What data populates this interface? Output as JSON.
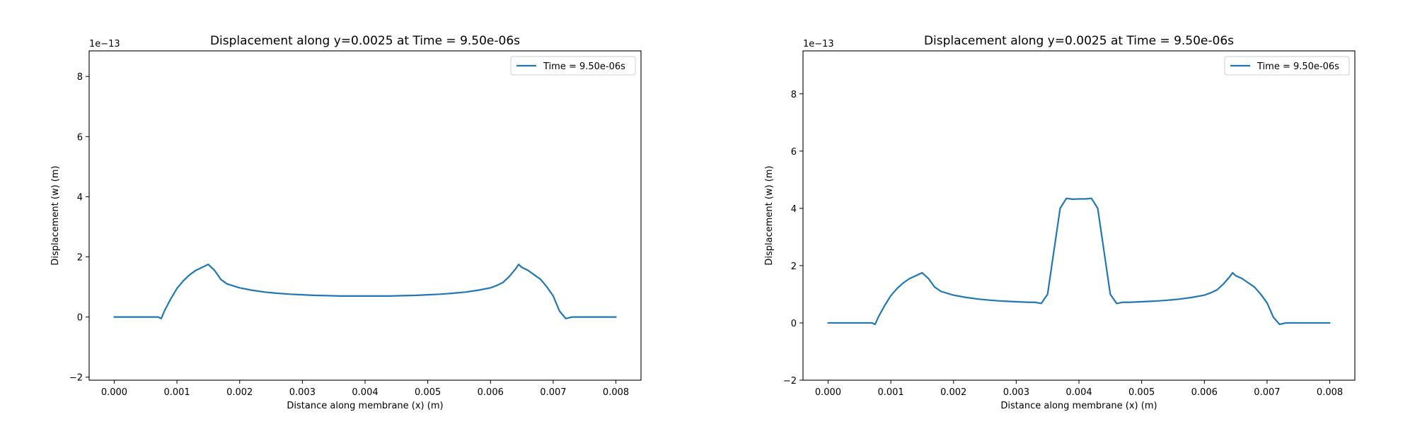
{
  "chart_data": [
    {
      "type": "line",
      "title": "Displacement along y=0.0025 at Time = 9.50e-06s",
      "xlabel": "Distance along membrane (x) (m)",
      "ylabel": "Displacement (w) (m)",
      "y_offset_label": "1e−13",
      "xlim": [
        -0.0004,
        0.0084
      ],
      "ylim": [
        -2.1,
        8.85
      ],
      "xticks": [
        0.0,
        0.001,
        0.002,
        0.003,
        0.004,
        0.005,
        0.006,
        0.007,
        0.008
      ],
      "xtick_labels": [
        "0.000",
        "0.001",
        "0.002",
        "0.003",
        "0.004",
        "0.005",
        "0.006",
        "0.007",
        "0.008"
      ],
      "yticks": [
        -2,
        0,
        2,
        4,
        6,
        8
      ],
      "ytick_labels": [
        "−2",
        "0",
        "2",
        "4",
        "6",
        "8"
      ],
      "legend_position": "top-right",
      "series": [
        {
          "name": "Time = 9.50e-06s",
          "color": "#1f77b4",
          "x": [
            0.0,
            0.0001,
            0.0002,
            0.0003,
            0.0004,
            0.0005,
            0.0006,
            0.0007,
            0.00075,
            0.0008,
            0.0009,
            0.001,
            0.0011,
            0.0012,
            0.0013,
            0.0014,
            0.0015,
            0.00155,
            0.0016,
            0.0017,
            0.0018,
            0.002,
            0.0022,
            0.0024,
            0.0026,
            0.0028,
            0.003,
            0.0032,
            0.0034,
            0.0036,
            0.0038,
            0.004,
            0.0042,
            0.0044,
            0.0046,
            0.0048,
            0.005,
            0.0052,
            0.0054,
            0.0056,
            0.0058,
            0.006,
            0.0061,
            0.0062,
            0.0063,
            0.0064,
            0.00645,
            0.0065,
            0.0066,
            0.0067,
            0.0068,
            0.0069,
            0.007,
            0.0071,
            0.0072,
            0.0073,
            0.0074,
            0.0075,
            0.0076,
            0.0077,
            0.0078,
            0.008
          ],
          "y": [
            0.0,
            0.0,
            0.0,
            0.0,
            0.0,
            0.0,
            0.0,
            0.0,
            -0.05,
            0.2,
            0.6,
            0.95,
            1.2,
            1.4,
            1.55,
            1.65,
            1.75,
            1.65,
            1.55,
            1.25,
            1.1,
            0.97,
            0.89,
            0.83,
            0.79,
            0.76,
            0.74,
            0.72,
            0.71,
            0.7,
            0.7,
            0.7,
            0.7,
            0.7,
            0.71,
            0.72,
            0.74,
            0.76,
            0.79,
            0.83,
            0.89,
            0.97,
            1.05,
            1.15,
            1.35,
            1.6,
            1.75,
            1.65,
            1.55,
            1.4,
            1.25,
            1.0,
            0.7,
            0.2,
            -0.05,
            0.0,
            0.0,
            0.0,
            0.0,
            0.0,
            0.0,
            0.0
          ]
        }
      ]
    },
    {
      "type": "line",
      "title": "Displacement along y=0.0025 at Time = 9.50e-06s",
      "xlabel": "Distance along membrane (x) (m)",
      "ylabel": "Displacement (w) (m)",
      "y_offset_label": "1e−13",
      "xlim": [
        -0.0004,
        0.0084
      ],
      "ylim": [
        -2.0,
        9.5
      ],
      "xticks": [
        0.0,
        0.001,
        0.002,
        0.003,
        0.004,
        0.005,
        0.006,
        0.007,
        0.008
      ],
      "xtick_labels": [
        "0.000",
        "0.001",
        "0.002",
        "0.003",
        "0.004",
        "0.005",
        "0.006",
        "0.007",
        "0.008"
      ],
      "yticks": [
        -2,
        0,
        2,
        4,
        6,
        8
      ],
      "ytick_labels": [
        "−2",
        "0",
        "2",
        "4",
        "6",
        "8"
      ],
      "legend_position": "top-right",
      "series": [
        {
          "name": "Time = 9.50e-06s",
          "color": "#1f77b4",
          "x": [
            0.0,
            0.0001,
            0.0002,
            0.0003,
            0.0004,
            0.0005,
            0.0006,
            0.0007,
            0.00075,
            0.0008,
            0.0009,
            0.001,
            0.0011,
            0.0012,
            0.0013,
            0.0014,
            0.0015,
            0.00155,
            0.0016,
            0.0017,
            0.0018,
            0.002,
            0.0022,
            0.0024,
            0.0026,
            0.0028,
            0.003,
            0.0032,
            0.0033,
            0.0034,
            0.0035,
            0.0036,
            0.0037,
            0.0038,
            0.0039,
            0.004,
            0.0041,
            0.0042,
            0.0043,
            0.0044,
            0.0045,
            0.0046,
            0.0047,
            0.0048,
            0.005,
            0.0052,
            0.0054,
            0.0056,
            0.0058,
            0.006,
            0.0061,
            0.0062,
            0.0063,
            0.0064,
            0.00645,
            0.0065,
            0.0066,
            0.0067,
            0.0068,
            0.0069,
            0.007,
            0.0071,
            0.0072,
            0.0073,
            0.0074,
            0.0075,
            0.0076,
            0.0077,
            0.0078,
            0.008
          ],
          "y": [
            0.0,
            0.0,
            0.0,
            0.0,
            0.0,
            0.0,
            0.0,
            0.0,
            -0.05,
            0.2,
            0.6,
            0.95,
            1.2,
            1.4,
            1.55,
            1.65,
            1.75,
            1.65,
            1.55,
            1.25,
            1.1,
            0.97,
            0.89,
            0.83,
            0.79,
            0.76,
            0.74,
            0.72,
            0.72,
            0.68,
            1.0,
            2.5,
            4.0,
            4.35,
            4.32,
            4.33,
            4.33,
            4.35,
            4.0,
            2.5,
            1.0,
            0.68,
            0.72,
            0.72,
            0.74,
            0.76,
            0.79,
            0.83,
            0.89,
            0.97,
            1.05,
            1.15,
            1.35,
            1.6,
            1.75,
            1.65,
            1.55,
            1.4,
            1.25,
            1.0,
            0.7,
            0.2,
            -0.05,
            0.0,
            0.0,
            0.0,
            0.0,
            0.0,
            0.0,
            0.0
          ]
        }
      ]
    }
  ]
}
